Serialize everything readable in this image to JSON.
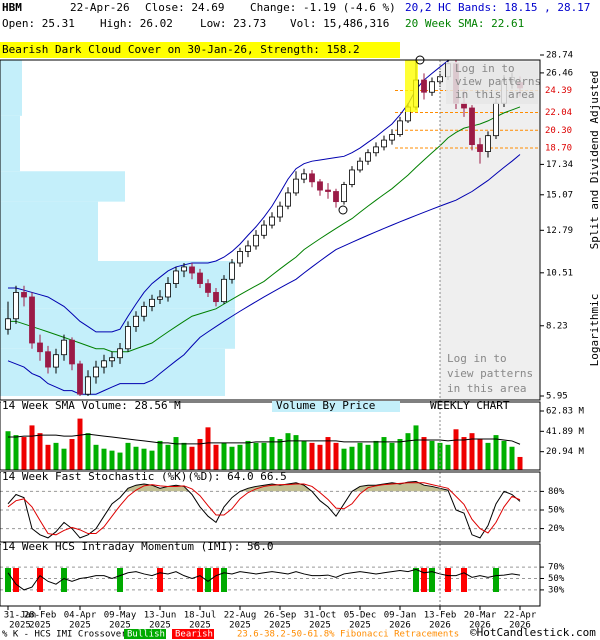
{
  "header": {
    "symbol": "HBM",
    "date": "22-Apr-26",
    "close": "Close: 24.69",
    "change": "Change: -1.19 (-4.6 %)",
    "bands": "20,2 HC Bands: 18.15 , 28.17",
    "open": "Open: 25.31",
    "high": "High: 26.02",
    "low": "Low: 23.73",
    "volume": "Vol: 15,486,316",
    "sma": "20 Week SMA: 22.61"
  },
  "banner": "Bearish Dark Cloud Cover on 30-Jan-26, Strength: 158.2",
  "side_labels": [
    "Split and Dividend Adjusted",
    "Logarithmic"
  ],
  "pattern_notice": [
    "Log in to",
    "view patterns",
    "in this area"
  ],
  "chart_data": [
    {
      "type": "candlestick",
      "log_scale": true,
      "up_color": "#ffffff",
      "down_color": "#9b1b46",
      "open": [
        8.1,
        8.5,
        9.6,
        9.4,
        7.6,
        7.3,
        6.8,
        7.2,
        7.7,
        6.9,
        6.0,
        6.5,
        6.8,
        7.0,
        7.1,
        7.4,
        8.2,
        8.6,
        9.0,
        9.3,
        9.4,
        10.0,
        10.6,
        10.8,
        10.5,
        10.0,
        9.6,
        9.2,
        10.2,
        11.0,
        11.6,
        11.9,
        12.5,
        13.1,
        13.6,
        14.3,
        15.2,
        16.2,
        16.6,
        16.0,
        15.4,
        15.3,
        14.6,
        15.8,
        16.9,
        17.6,
        18.3,
        18.8,
        19.4,
        19.9,
        21.2,
        22.6,
        25.6,
        24.2,
        25.4,
        26.0,
        27.6,
        23.0,
        22.5,
        19.0,
        18.4,
        19.8,
        23.0,
        25.5,
        25.31
      ],
      "high": [
        9.2,
        9.9,
        9.9,
        9.6,
        7.9,
        7.5,
        7.4,
        7.9,
        7.8,
        7.0,
        6.7,
        7.0,
        7.2,
        7.3,
        7.6,
        8.4,
        8.8,
        9.2,
        9.5,
        9.7,
        10.3,
        10.8,
        11.0,
        11.0,
        10.7,
        10.2,
        9.8,
        10.4,
        11.2,
        11.8,
        12.2,
        12.8,
        13.4,
        13.9,
        14.6,
        15.6,
        16.8,
        17.0,
        16.9,
        16.2,
        15.9,
        15.5,
        16.0,
        17.2,
        17.9,
        18.6,
        19.2,
        19.8,
        20.4,
        21.6,
        23.0,
        28.0,
        26.4,
        25.9,
        26.7,
        28.6,
        28.2,
        24.5,
        22.8,
        19.6,
        20.2,
        23.5,
        26.2,
        26.5,
        26.02
      ],
      "low": [
        7.9,
        8.3,
        9.0,
        7.4,
        7.0,
        6.6,
        6.6,
        7.0,
        6.7,
        5.95,
        5.95,
        6.3,
        6.6,
        6.8,
        6.9,
        7.3,
        8.0,
        8.4,
        8.8,
        9.1,
        9.2,
        9.8,
        10.3,
        10.2,
        9.8,
        9.4,
        9.0,
        9.1,
        10.0,
        10.8,
        11.3,
        11.7,
        12.3,
        12.9,
        13.3,
        14.1,
        15.0,
        15.9,
        15.6,
        15.0,
        14.8,
        14.2,
        14.4,
        15.6,
        16.7,
        17.3,
        18.0,
        18.5,
        19.0,
        19.7,
        21.0,
        22.3,
        23.4,
        23.8,
        24.8,
        25.6,
        22.4,
        21.6,
        18.5,
        17.4,
        17.9,
        19.5,
        22.6,
        24.6,
        23.73
      ],
      "close": [
        8.5,
        9.6,
        9.4,
        7.6,
        7.3,
        6.8,
        7.2,
        7.7,
        6.9,
        6.0,
        6.5,
        6.8,
        7.0,
        7.1,
        7.4,
        8.2,
        8.6,
        9.0,
        9.3,
        9.4,
        10.0,
        10.6,
        10.8,
        10.5,
        10.0,
        9.6,
        9.2,
        10.2,
        11.0,
        11.6,
        11.9,
        12.5,
        13.1,
        13.6,
        14.3,
        15.2,
        16.2,
        16.6,
        16.0,
        15.4,
        15.3,
        14.6,
        15.8,
        16.9,
        17.6,
        18.3,
        18.8,
        19.4,
        19.9,
        21.2,
        22.6,
        25.6,
        24.2,
        25.4,
        26.0,
        27.6,
        23.0,
        22.5,
        19.0,
        18.4,
        19.8,
        23.0,
        25.5,
        25.9,
        24.69
      ],
      "lines": [
        {
          "color": "#008000",
          "values": [
            8.4,
            8.4,
            8.3,
            8.2,
            8.1,
            8.0,
            7.9,
            7.8,
            7.7,
            7.6,
            7.5,
            7.4,
            7.4,
            7.3,
            7.3,
            7.3,
            7.4,
            7.5,
            7.6,
            7.8,
            8.0,
            8.2,
            8.4,
            8.6,
            8.7,
            8.8,
            8.9,
            9.1,
            9.3,
            9.5,
            9.7,
            9.9,
            10.1,
            10.4,
            10.7,
            11.0,
            11.3,
            11.7,
            12.0,
            12.3,
            12.6,
            12.9,
            13.2,
            13.5,
            13.9,
            14.3,
            14.7,
            15.1,
            15.5,
            16.0,
            16.5,
            17.1,
            17.7,
            18.3,
            18.9,
            19.6,
            20.1,
            20.5,
            20.7,
            20.9,
            21.2,
            21.6,
            22.0,
            22.3,
            22.61
          ]
        },
        {
          "color": "#0000b0",
          "values": [
            9.8,
            9.8,
            9.7,
            9.6,
            9.5,
            9.4,
            9.2,
            9.0,
            8.7,
            8.4,
            8.2,
            8.0,
            8.0,
            8.0,
            8.1,
            8.6,
            9.1,
            9.6,
            10.0,
            10.3,
            10.6,
            10.8,
            10.9,
            11.0,
            11.0,
            11.0,
            11.1,
            11.3,
            11.6,
            12.0,
            12.5,
            13.0,
            13.6,
            14.3,
            15.2,
            16.2,
            17.0,
            17.4,
            17.6,
            17.7,
            17.8,
            17.9,
            18.0,
            18.3,
            18.7,
            19.2,
            19.7,
            20.3,
            20.9,
            21.8,
            22.9,
            24.5,
            25.6,
            26.4,
            27.2,
            28.0,
            28.4,
            28.5,
            28.5,
            28.4,
            28.3,
            28.2,
            28.2,
            28.2,
            28.17
          ]
        },
        {
          "color": "#0000b0",
          "values": [
            7.0,
            6.9,
            6.8,
            6.6,
            6.5,
            6.3,
            6.2,
            6.1,
            6.1,
            6.0,
            6.0,
            6.0,
            6.1,
            6.2,
            6.3,
            6.3,
            6.3,
            6.3,
            6.4,
            6.6,
            6.8,
            7.0,
            7.2,
            7.5,
            7.8,
            8.0,
            8.2,
            8.4,
            8.6,
            8.8,
            9.0,
            9.2,
            9.4,
            9.6,
            9.8,
            10.0,
            10.2,
            10.5,
            10.8,
            11.1,
            11.4,
            11.7,
            11.9,
            12.1,
            12.3,
            12.5,
            12.7,
            12.9,
            13.1,
            13.3,
            13.5,
            13.7,
            13.9,
            14.1,
            14.3,
            14.5,
            14.7,
            15.0,
            15.3,
            15.7,
            16.1,
            16.6,
            17.1,
            17.6,
            18.15
          ]
        }
      ],
      "volume_by_price": {
        "color": "#c4effa",
        "bins": [
          5.95,
          7.4,
          8.9,
          11.1,
          14.6,
          16.8,
          21.7,
          28.74
        ],
        "values": [
          225,
          235,
          235,
          98,
          125,
          20,
          22
        ]
      },
      "fib_levels": [
        24.39,
        22.04,
        {
          "value": 20.3,
          "label": "20.30"
        },
        {
          "value": 18.7,
          "label": "18.70"
        }
      ],
      "fib_color": "#ff8c00",
      "fib_label_color": "#dd0000",
      "ylim": [
        5.95,
        28.74
      ],
      "yticks": [
        28.74,
        26.46,
        17.34,
        15.07,
        12.79,
        10.51,
        8.23,
        5.95
      ],
      "xticks": [
        {
          "value": 0,
          "label": "31-Jan",
          "year": "2025"
        },
        {
          "value": 4,
          "label": "28-Feb",
          "year": "2025"
        },
        {
          "value": 9,
          "label": "04-Apr",
          "year": "2025"
        },
        {
          "value": 14,
          "label": "09-May",
          "year": "2025"
        },
        {
          "value": 19,
          "label": "13-Jun",
          "year": "2025"
        },
        {
          "value": 24,
          "label": "18-Jul",
          "year": "2025"
        },
        {
          "value": 29,
          "label": "22-Aug",
          "year": "2025"
        },
        {
          "value": 34,
          "label": "26-Sep",
          "year": "2025"
        },
        {
          "value": 39,
          "label": "31-Oct",
          "year": "2025"
        },
        {
          "value": 44,
          "label": "05-Dec",
          "year": "2025"
        },
        {
          "value": 49,
          "label": "09-Jan",
          "year": "2026"
        },
        {
          "value": 54,
          "label": "13-Feb",
          "year": "2026"
        },
        {
          "value": 59,
          "label": "20-Mar",
          "year": "2026"
        },
        {
          "value": 64,
          "label": "22-Apr",
          "year": "2026"
        }
      ]
    },
    {
      "type": "bar",
      "title": "14 Week SMA Volume: 28.56 M",
      "subtitle": "Volume By Price",
      "note": "WEEKLY CHART",
      "up_color": "#00b000",
      "down_color": "#ee0000",
      "values": [
        42,
        38,
        36,
        48,
        40,
        28,
        30,
        24,
        34,
        55,
        40,
        28,
        24,
        22,
        20,
        30,
        26,
        24,
        22,
        32,
        28,
        36,
        30,
        26,
        34,
        46,
        28,
        30,
        26,
        28,
        32,
        30,
        30,
        36,
        34,
        40,
        38,
        32,
        30,
        28,
        36,
        30,
        24,
        26,
        30,
        28,
        32,
        36,
        30,
        34,
        40,
        48,
        36,
        32,
        30,
        28,
        44,
        36,
        40,
        34,
        30,
        38,
        32,
        26,
        15.49
      ],
      "sma": {
        "color": "#000000",
        "values": [
          36,
          36,
          37,
          37,
          38,
          38,
          38,
          37,
          37,
          38,
          39,
          38,
          37,
          36,
          35,
          34,
          33,
          32,
          31,
          30,
          30,
          29,
          29,
          29,
          29,
          30,
          30,
          30,
          30,
          30,
          30,
          31,
          31,
          31,
          31,
          32,
          32,
          32,
          32,
          32,
          32,
          32,
          31,
          31,
          31,
          31,
          31,
          31,
          31,
          31,
          32,
          33,
          33,
          33,
          33,
          32,
          33,
          33,
          34,
          34,
          34,
          34,
          33,
          32,
          28.56
        ]
      },
      "ylim": [
        0,
        62.83
      ],
      "yticks": [
        {
          "value": 62.83,
          "label": "62.83 M"
        },
        {
          "value": 41.89,
          "label": "41.89 M"
        },
        {
          "value": 20.94,
          "label": "20.94 M"
        }
      ]
    },
    {
      "type": "line",
      "title": "14 Week Fast Stochastic (%K)(%D): 64.0 66.5",
      "shade_color": "#c2bf92",
      "series": [
        {
          "color": "#000000",
          "values": [
            60,
            75,
            70,
            20,
            10,
            5,
            15,
            30,
            20,
            5,
            10,
            20,
            40,
            60,
            70,
            85,
            90,
            92,
            90,
            85,
            88,
            90,
            88,
            75,
            55,
            40,
            30,
            55,
            70,
            80,
            85,
            88,
            90,
            92,
            90,
            92,
            94,
            90,
            80,
            65,
            55,
            40,
            60,
            80,
            88,
            90,
            90,
            92,
            94,
            92,
            95,
            96,
            90,
            88,
            85,
            82,
            50,
            45,
            10,
            5,
            25,
            60,
            80,
            75,
            64.0
          ]
        },
        {
          "color": "#dd0000",
          "values": [
            55,
            65,
            68,
            55,
            33,
            12,
            10,
            17,
            22,
            18,
            12,
            12,
            23,
            40,
            57,
            72,
            82,
            89,
            91,
            89,
            88,
            88,
            89,
            84,
            73,
            57,
            42,
            42,
            52,
            68,
            78,
            84,
            88,
            90,
            91,
            91,
            92,
            92,
            88,
            78,
            67,
            53,
            52,
            60,
            76,
            86,
            89,
            91,
            92,
            93,
            94,
            94,
            94,
            91,
            88,
            85,
            72,
            59,
            35,
            20,
            13,
            30,
            55,
            72,
            66.5
          ]
        }
      ],
      "ylim": [
        0,
        100
      ],
      "yticks": [
        {
          "value": 80,
          "label": "80%"
        },
        {
          "value": 50,
          "label": "50%"
        },
        {
          "value": 20,
          "label": "20%"
        }
      ]
    },
    {
      "type": "line",
      "title": "14 Week HCS Intraday Momentum (IMI): 56.0",
      "color": "#000000",
      "values": [
        60,
        40,
        30,
        35,
        55,
        45,
        40,
        50,
        45,
        50,
        52,
        55,
        55,
        50,
        55,
        60,
        62,
        58,
        55,
        60,
        58,
        62,
        55,
        50,
        55,
        45,
        55,
        60,
        58,
        62,
        60,
        58,
        60,
        62,
        60,
        58,
        62,
        58,
        55,
        55,
        56,
        52,
        58,
        60,
        62,
        60,
        58,
        60,
        62,
        64,
        62,
        66,
        60,
        62,
        58,
        55,
        55,
        60,
        52,
        55,
        52,
        55,
        56,
        58,
        56.0
      ],
      "bullish_weeks": [
        0,
        7,
        14,
        25,
        27,
        51,
        53,
        61
      ],
      "bearish_weeks": [
        1,
        4,
        19,
        24,
        26,
        52,
        55,
        57
      ],
      "bull_color": "#00aa00",
      "bear_color": "#ff0000",
      "ylim": [
        0,
        100
      ],
      "yticks": [
        {
          "value": 70,
          "label": "70%"
        },
        {
          "value": 50,
          "label": "50%"
        },
        {
          "value": 30,
          "label": "30%"
        }
      ]
    }
  ],
  "footer": {
    "crossover": "% K - HCS IMI Crossover,",
    "bullish": "Bullish",
    "bearish": "Bearish",
    "fib": "23.6-38.2-50-61.8% Fibonacci Retracements",
    "copyright": "©HotCandlestick.com"
  }
}
